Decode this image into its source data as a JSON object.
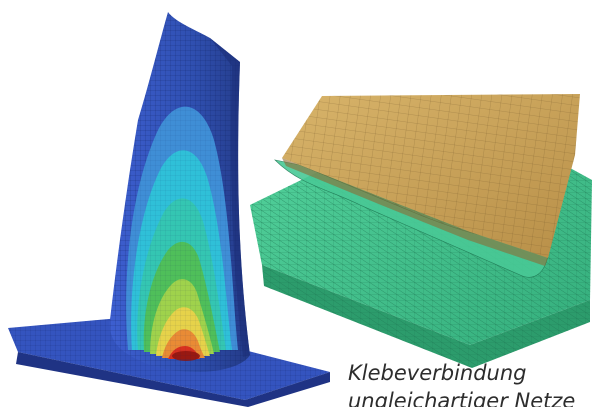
{
  "caption": {
    "line1": "Klebeverbindung",
    "line2": "ungleichartiger Netze"
  },
  "colors": {
    "blade_blue": "#2f4fb0",
    "contour_cyan": "#2fc0d8",
    "contour_green": "#4fbf5a",
    "contour_yellow": "#e6d24a",
    "contour_red": "#d8301f",
    "plate_green": "#3fc38d",
    "sheet_tan": "#c9a25a"
  }
}
